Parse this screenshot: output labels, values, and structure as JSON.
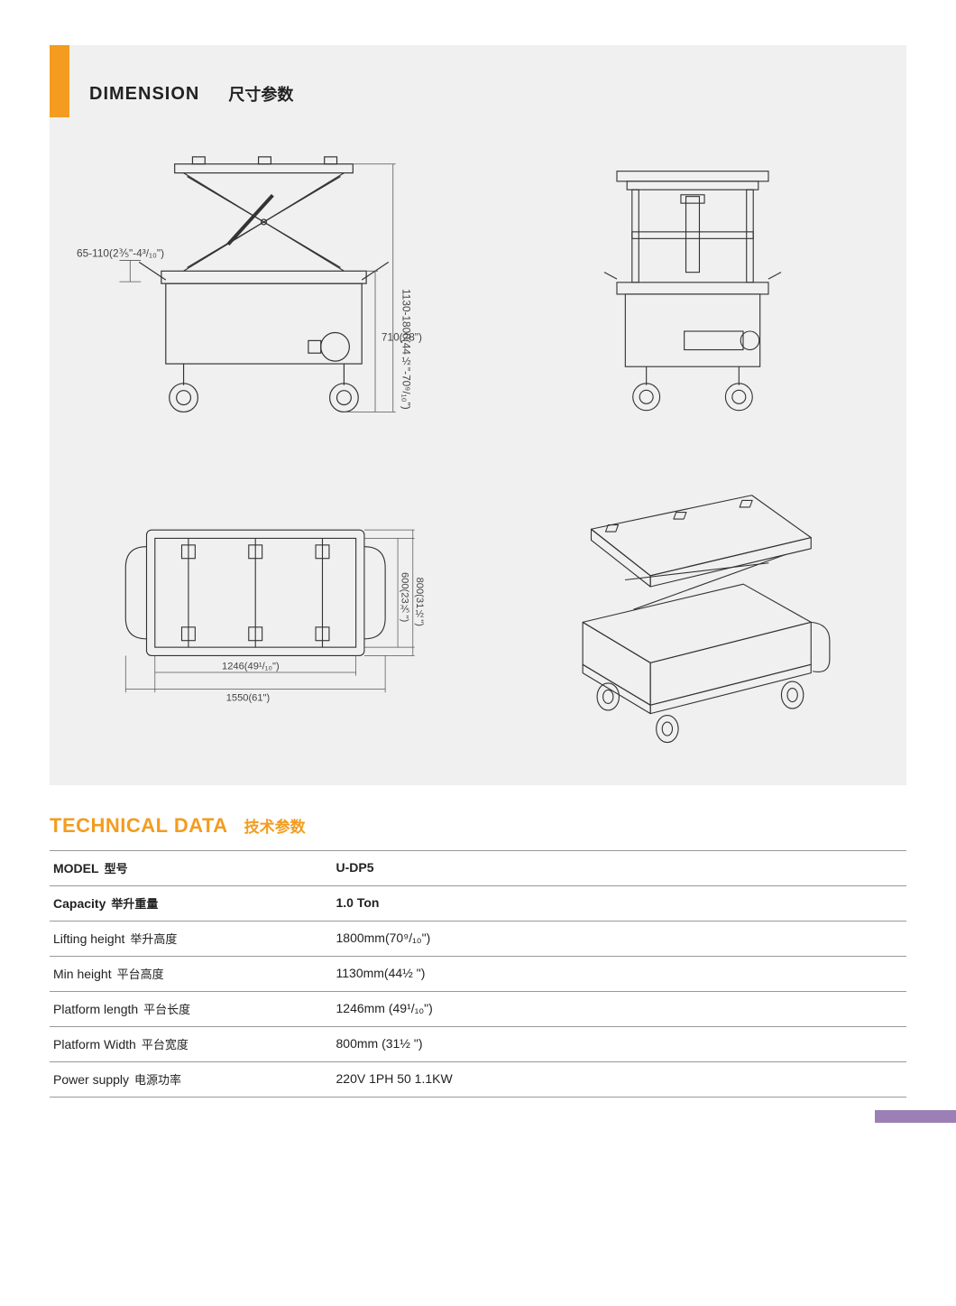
{
  "colors": {
    "accent_orange": "#f39c1f",
    "panel_bg": "#f0f0f0",
    "line": "#333333",
    "text": "#222222",
    "footer_accent": "#9b7fb5",
    "table_border": "#999999"
  },
  "dimension_section": {
    "title_en": "DIMENSION",
    "title_cn": "尺寸参数",
    "views": {
      "side": {
        "type": "engineering-side-view",
        "dims": {
          "handle_range": "65-110(2⅗\"-4³/₁₀\")",
          "overall_h": "1130-1800(44½\"-70⁹/₁₀\")",
          "base_h": "710(28\")"
        }
      },
      "front": {
        "type": "engineering-front-view"
      },
      "top": {
        "type": "engineering-top-view",
        "dims": {
          "inner_l": "1246(49¹/₁₀\")",
          "outer_l": "1550(61\")",
          "inner_w": "600(23⅗\")",
          "outer_w": "800(31½\")"
        }
      },
      "iso": {
        "type": "engineering-isometric-view"
      }
    }
  },
  "technical_data": {
    "title_en": "TECHNICAL DATA",
    "title_cn": "技术参数",
    "rows": [
      {
        "label_en": "MODEL",
        "label_cn": "型号",
        "value": "U-DP5",
        "bold": true
      },
      {
        "label_en": "Capacity",
        "label_cn": "举升重量",
        "value": "1.0 Ton",
        "bold": true
      },
      {
        "label_en": "Lifting height",
        "label_cn": "举升高度",
        "value": "1800mm(70⁹/₁₀\")",
        "bold": false
      },
      {
        "label_en": "Min height",
        "label_cn": "平台高度",
        "value": "1130mm(44½ \")",
        "bold": false
      },
      {
        "label_en": "Platform length",
        "label_cn": "平台长度",
        "value": "1246mm (49¹/₁₀\")",
        "bold": false
      },
      {
        "label_en": "Platform Width",
        "label_cn": "平台宽度",
        "value": "800mm (31½ \")",
        "bold": false
      },
      {
        "label_en": "Power supply",
        "label_cn": "电源功率",
        "value": "220V 1PH 50 1.1KW",
        "bold": false
      }
    ]
  }
}
